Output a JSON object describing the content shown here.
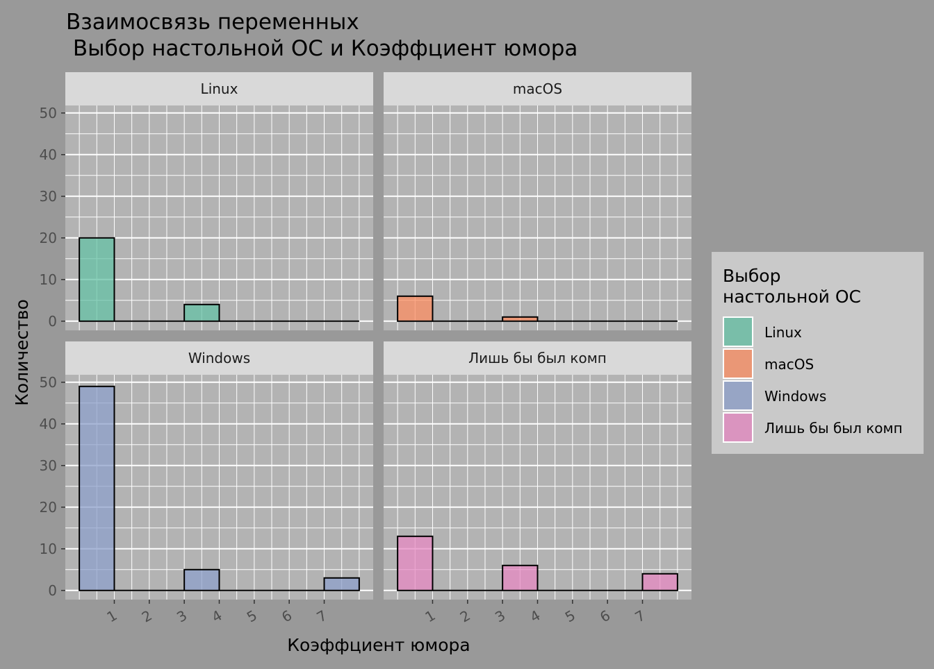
{
  "chart_data": {
    "type": "bar",
    "title_line1": "Взаимосвязь переменных",
    "title_line2": " Выбор настольной ОС и Коэффциент юмора",
    "xlabel": "Коэффциент юмора",
    "ylabel": "Количество",
    "x_ticks": [
      "1",
      "2",
      "3",
      "4",
      "5",
      "6",
      "7"
    ],
    "y_ticks": [
      "0",
      "10",
      "20",
      "30",
      "40",
      "50"
    ],
    "x_range": [
      0,
      8
    ],
    "ylim": [
      0,
      55
    ],
    "bin_width": 1,
    "grid": true,
    "legend_position": "right",
    "legend_title_line1": "Выбор",
    "legend_title_line2": "настольной ОС",
    "facets": [
      {
        "name": "Linux",
        "color": "#66C2A5",
        "bins": [
          {
            "x": 0.5,
            "y": 20
          },
          {
            "x": 1.5,
            "y": 0
          },
          {
            "x": 2.5,
            "y": 0
          },
          {
            "x": 3.5,
            "y": 4
          },
          {
            "x": 4.5,
            "y": 0
          },
          {
            "x": 5.5,
            "y": 0
          },
          {
            "x": 6.5,
            "y": 0
          },
          {
            "x": 7.5,
            "y": 0
          }
        ]
      },
      {
        "name": "macOS",
        "color": "#FC8D62",
        "bins": [
          {
            "x": 0.5,
            "y": 6
          },
          {
            "x": 1.5,
            "y": 0
          },
          {
            "x": 2.5,
            "y": 0
          },
          {
            "x": 3.5,
            "y": 1
          },
          {
            "x": 4.5,
            "y": 0
          },
          {
            "x": 5.5,
            "y": 0
          },
          {
            "x": 6.5,
            "y": 0
          },
          {
            "x": 7.5,
            "y": 0
          }
        ]
      },
      {
        "name": "Windows",
        "color": "#8DA0CB",
        "bins": [
          {
            "x": 0.5,
            "y": 49
          },
          {
            "x": 1.5,
            "y": 0
          },
          {
            "x": 2.5,
            "y": 0
          },
          {
            "x": 3.5,
            "y": 5
          },
          {
            "x": 4.5,
            "y": 0
          },
          {
            "x": 5.5,
            "y": 0
          },
          {
            "x": 6.5,
            "y": 0
          },
          {
            "x": 7.5,
            "y": 3
          }
        ]
      },
      {
        "name": "Лишь бы был комп",
        "color": "#E78AC3",
        "bins": [
          {
            "x": 0.5,
            "y": 13
          },
          {
            "x": 1.5,
            "y": 0
          },
          {
            "x": 2.5,
            "y": 0
          },
          {
            "x": 3.5,
            "y": 6
          },
          {
            "x": 4.5,
            "y": 0
          },
          {
            "x": 5.5,
            "y": 0
          },
          {
            "x": 6.5,
            "y": 0
          },
          {
            "x": 7.5,
            "y": 4
          }
        ]
      }
    ]
  }
}
